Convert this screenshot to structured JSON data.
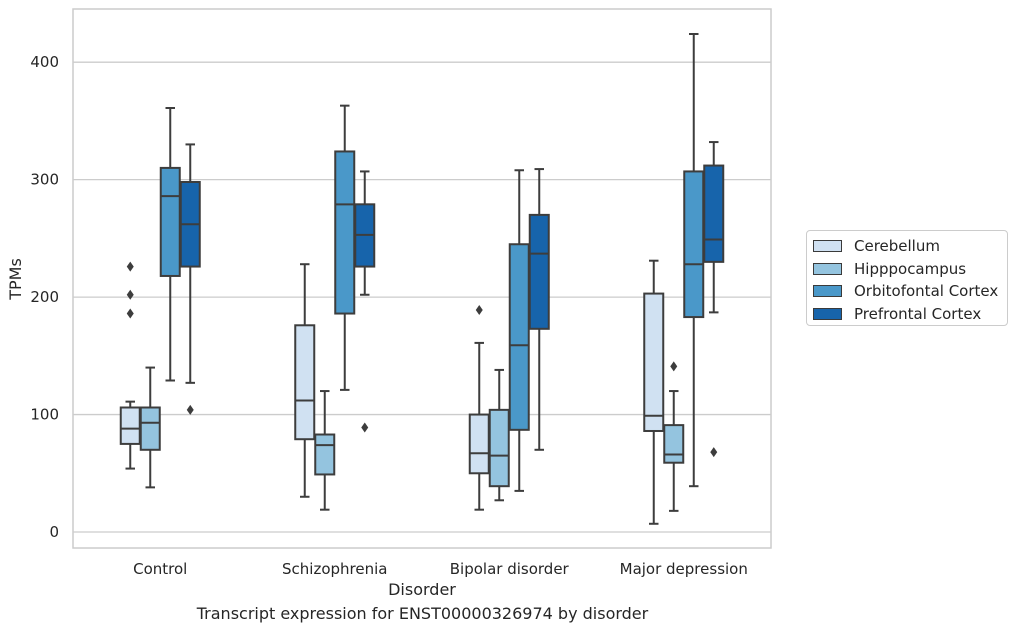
{
  "caption": "Transcript expression for ENST00000326974 by disorder",
  "chart_data": {
    "type": "box",
    "xlabel": "Disorder",
    "ylabel": "TPMs",
    "ylim": [
      -13,
      445
    ],
    "yticks": [
      0,
      100,
      200,
      300,
      400
    ],
    "grid": "horizontal",
    "legend_position": "right",
    "categories": [
      "Control",
      "Schizophrenia",
      "Bipolar disorder",
      "Major depression"
    ],
    "series": [
      {
        "name": "Cerebellum",
        "color": "#d0e1f2",
        "boxes": [
          {
            "whislo": 54,
            "q1": 75,
            "med": 88,
            "q3": 106,
            "whishi": 111,
            "fliers": [
              186,
              202,
              226
            ]
          },
          {
            "whislo": 30,
            "q1": 79,
            "med": 112,
            "q3": 176,
            "whishi": 228,
            "fliers": []
          },
          {
            "whislo": 19,
            "q1": 50,
            "med": 67,
            "q3": 100,
            "whishi": 161,
            "fliers": [
              189
            ]
          },
          {
            "whislo": 7,
            "q1": 86,
            "med": 99,
            "q3": 203,
            "whishi": 231,
            "fliers": []
          }
        ]
      },
      {
        "name": "Hipppocampus",
        "color": "#94c4df",
        "boxes": [
          {
            "whislo": 38,
            "q1": 70,
            "med": 93,
            "q3": 106,
            "whishi": 140,
            "fliers": []
          },
          {
            "whislo": 19,
            "q1": 49,
            "med": 74,
            "q3": 83,
            "whishi": 120,
            "fliers": []
          },
          {
            "whislo": 27,
            "q1": 39,
            "med": 65,
            "q3": 104,
            "whishi": 138,
            "fliers": []
          },
          {
            "whislo": 18,
            "q1": 59,
            "med": 66,
            "q3": 91,
            "whishi": 120,
            "fliers": [
              141
            ]
          }
        ]
      },
      {
        "name": "Orbitofontal Cortex",
        "color": "#4a98c9",
        "boxes": [
          {
            "whislo": 129,
            "q1": 218,
            "med": 286,
            "q3": 310,
            "whishi": 361,
            "fliers": []
          },
          {
            "whislo": 121,
            "q1": 186,
            "med": 279,
            "q3": 324,
            "whishi": 363,
            "fliers": []
          },
          {
            "whislo": 35,
            "q1": 87,
            "med": 159,
            "q3": 245,
            "whishi": 308,
            "fliers": []
          },
          {
            "whislo": 39,
            "q1": 183,
            "med": 228,
            "q3": 307,
            "whishi": 424,
            "fliers": []
          }
        ]
      },
      {
        "name": "Prefrontal Cortex",
        "color": "#1764ab",
        "boxes": [
          {
            "whislo": 127,
            "q1": 226,
            "med": 262,
            "q3": 298,
            "whishi": 330,
            "fliers": [
              104
            ]
          },
          {
            "whislo": 202,
            "q1": 226,
            "med": 253,
            "q3": 279,
            "whishi": 307,
            "fliers": [
              89
            ]
          },
          {
            "whislo": 70,
            "q1": 173,
            "med": 237,
            "q3": 270,
            "whishi": 309,
            "fliers": []
          },
          {
            "whislo": 187,
            "q1": 230,
            "med": 249,
            "q3": 312,
            "whishi": 332,
            "fliers": [
              68
            ]
          }
        ]
      }
    ]
  }
}
